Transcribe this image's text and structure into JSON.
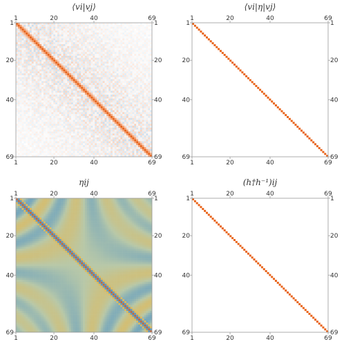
{
  "chart_data": [
    {
      "type": "heatmap",
      "title": "⟨vi|vj⟩",
      "n": 69,
      "ticks": [
        1,
        20,
        40,
        69
      ],
      "colors": {
        "positive": "#e8641b",
        "negative": "#4a90c8",
        "mid": "#ffffff"
      },
      "pattern": "diag-plus-checker-noise",
      "offdiag_amplitude": 0.35,
      "background": "#ffffff"
    },
    {
      "type": "heatmap",
      "title": "⟨vi|η|vj⟩",
      "n": 69,
      "ticks": [
        1,
        20,
        40,
        69
      ],
      "colors": {
        "positive": "#e8641b",
        "negative": "#4a90c8",
        "mid": "#ffffff"
      },
      "pattern": "identity",
      "offdiag_amplitude": 0,
      "background": "#ffffff"
    },
    {
      "type": "heatmap",
      "title": "ηij",
      "n": 69,
      "ticks": [
        1,
        20,
        40,
        69
      ],
      "colors": {
        "positive": "#e8b64a",
        "negative": "#4a90c8",
        "mid": "#b8c8a8"
      },
      "pattern": "hyperbolic-bands",
      "offdiag_amplitude": 0.8,
      "background": "#c8d4b8"
    },
    {
      "type": "heatmap",
      "title": "(h†h⁻¹)ij",
      "n": 69,
      "ticks": [
        1,
        20,
        40,
        69
      ],
      "colors": {
        "positive": "#e8641b",
        "negative": "#4a90c8",
        "mid": "#ffffff"
      },
      "pattern": "identity",
      "offdiag_amplitude": 0,
      "background": "#ffffff"
    }
  ]
}
